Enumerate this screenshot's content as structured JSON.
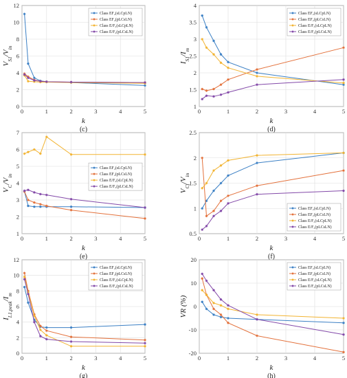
{
  "legend_prefix": "Class",
  "series_meta": [
    {
      "color": "#3a7fc4",
      "marker": "star"
    },
    {
      "color": "#e3703a",
      "marker": "star"
    },
    {
      "color": "#f2b330",
      "marker": "star"
    },
    {
      "color": "#8248a8",
      "marker": "star"
    }
  ],
  "chart_data": [
    {
      "type": "line",
      "caption": "(c)",
      "xlabel": "k",
      "ylabel_main": "V",
      "ylabel_sub1": "S1",
      "ylabel_mid": "/V",
      "ylabel_sub2": "in",
      "xlim": [
        0,
        5
      ],
      "ylim": [
        0,
        12
      ],
      "xticks": [
        0,
        1,
        2,
        3,
        4,
        5
      ],
      "yticks": [
        0,
        2,
        4,
        6,
        8,
        10,
        12
      ],
      "grid": true,
      "legend": "top-right",
      "series": [
        {
          "name": "EF₂(sLCpLN)",
          "x": [
            0.1,
            0.25,
            0.5,
            0.75,
            1,
            2,
            5
          ],
          "y": [
            11,
            5.1,
            3.4,
            3.05,
            2.95,
            2.85,
            2.5
          ]
        },
        {
          "name": "EF₂(pLCsLN)",
          "x": [
            0.1,
            0.25,
            0.5,
            0.75,
            1,
            2,
            5
          ],
          "y": [
            3.9,
            3.55,
            3.15,
            3.0,
            2.95,
            2.9,
            2.85
          ]
        },
        {
          "name": "E/F₂(sLCpLN)",
          "x": [
            0.1,
            0.25,
            0.5,
            0.75,
            1,
            2,
            5
          ],
          "y": [
            3.7,
            3.0,
            2.95,
            2.9,
            2.9,
            2.85,
            2.75
          ]
        },
        {
          "name": "E/F₂(pLCsLN)",
          "x": [
            0.1,
            0.25,
            0.5,
            0.75,
            1,
            2,
            5
          ],
          "y": [
            3.8,
            3.4,
            3.1,
            3.0,
            2.95,
            2.9,
            2.85
          ]
        }
      ]
    },
    {
      "type": "line",
      "caption": "(d)",
      "xlabel": "k",
      "ylabel_main": "I",
      "ylabel_sub1": "S1",
      "ylabel_mid": "/I",
      "ylabel_sub2": "m",
      "xlim": [
        0,
        5
      ],
      "ylim": [
        1,
        4
      ],
      "xticks": [
        0,
        1,
        2,
        3,
        4,
        5
      ],
      "yticks": [
        1,
        1.5,
        2,
        2.5,
        3,
        3.5,
        4
      ],
      "grid": true,
      "legend": "top-right",
      "series": [
        {
          "name": "EF₂(sLCpLN)",
          "x": [
            0.1,
            0.25,
            0.5,
            0.75,
            1,
            2,
            5
          ],
          "y": [
            3.7,
            3.35,
            2.95,
            2.55,
            2.32,
            2.0,
            1.65
          ]
        },
        {
          "name": "EF₂(pLCsLN)",
          "x": [
            0.1,
            0.25,
            0.5,
            0.75,
            1,
            2,
            5
          ],
          "y": [
            1.52,
            1.47,
            1.52,
            1.65,
            1.8,
            2.1,
            2.75
          ]
        },
        {
          "name": "E/F₂(sLCpLN)",
          "x": [
            0.1,
            0.25,
            0.5,
            0.75,
            1,
            2,
            5
          ],
          "y": [
            3.0,
            2.75,
            2.55,
            2.3,
            2.15,
            1.9,
            1.7
          ]
        },
        {
          "name": "E/F₂(pLCsLN)",
          "x": [
            0.1,
            0.25,
            0.5,
            0.75,
            1,
            2,
            5
          ],
          "y": [
            1.22,
            1.32,
            1.3,
            1.35,
            1.42,
            1.65,
            1.8
          ]
        }
      ]
    },
    {
      "type": "line",
      "caption": "(e)",
      "xlabel": "k",
      "ylabel_main": "V",
      "ylabel_sub1": "C",
      "ylabel_mid": "/V",
      "ylabel_sub2": "in",
      "xlim": [
        0,
        5
      ],
      "ylim": [
        1,
        7
      ],
      "xticks": [
        0,
        1,
        2,
        3,
        4,
        5
      ],
      "yticks": [
        1,
        2,
        3,
        4,
        5,
        6,
        7
      ],
      "grid": true,
      "legend": "center-right",
      "series": [
        {
          "name": "EF₂(sLCpLN)",
          "x": [
            0.1,
            0.25,
            0.5,
            0.75,
            1,
            2,
            5
          ],
          "y": [
            3.5,
            2.65,
            2.6,
            2.6,
            2.6,
            2.6,
            2.55
          ]
        },
        {
          "name": "EF₂(pLCsLN)",
          "x": [
            0.1,
            0.25,
            0.5,
            0.75,
            1,
            2,
            5
          ],
          "y": [
            3.5,
            3.0,
            2.85,
            2.75,
            2.65,
            2.4,
            1.9
          ]
        },
        {
          "name": "E/F₂(sLCpLN)",
          "x": [
            0.1,
            0.25,
            0.5,
            0.75,
            1,
            2,
            5
          ],
          "y": [
            5.75,
            5.85,
            6.0,
            5.75,
            6.75,
            5.7,
            5.7
          ]
        },
        {
          "name": "E/F₂(pLCsLN)",
          "x": [
            0.1,
            0.25,
            0.5,
            0.75,
            1,
            2,
            5
          ],
          "y": [
            3.55,
            3.6,
            3.45,
            3.35,
            3.3,
            3.05,
            2.55
          ]
        }
      ]
    },
    {
      "type": "line",
      "caption": "(f)",
      "xlabel": "k",
      "ylabel_main": "V",
      "ylabel_sub1": "Cf",
      "ylabel_mid": "/V",
      "ylabel_sub2": "in",
      "xlim": [
        0,
        5
      ],
      "ylim": [
        0.5,
        2.5
      ],
      "xticks": [
        0,
        1,
        2,
        3,
        4,
        5
      ],
      "yticks": [
        0.5,
        1,
        1.5,
        2,
        2.5
      ],
      "grid": true,
      "legend": "bottom-right",
      "series": [
        {
          "name": "EF₂(sLCpLN)",
          "x": [
            0.1,
            0.25,
            0.5,
            0.75,
            1,
            2,
            5
          ],
          "y": [
            1.0,
            1.15,
            1.35,
            1.5,
            1.65,
            1.9,
            2.1
          ]
        },
        {
          "name": "EF₂(pLCsLN)",
          "x": [
            0.1,
            0.25,
            0.5,
            0.75,
            1,
            2,
            5
          ],
          "y": [
            2.0,
            0.85,
            0.95,
            1.15,
            1.25,
            1.45,
            1.75
          ]
        },
        {
          "name": "E/F₂(sLCpLN)",
          "x": [
            0.1,
            0.25,
            0.5,
            0.75,
            1,
            2,
            5
          ],
          "y": [
            1.4,
            1.5,
            1.75,
            1.85,
            1.95,
            2.05,
            2.1
          ]
        },
        {
          "name": "E/F₂(pLCsLN)",
          "x": [
            0.1,
            0.25,
            0.5,
            0.75,
            1,
            2,
            5
          ],
          "y": [
            0.58,
            0.65,
            0.85,
            0.95,
            1.1,
            1.28,
            1.35
          ]
        }
      ]
    },
    {
      "type": "line",
      "caption": "(g)",
      "xlabel": "k",
      "ylabel_main": "I",
      "ylabel_sub1": "L1,peak",
      "ylabel_mid": "/I",
      "ylabel_sub2": "m",
      "xlim": [
        0,
        5
      ],
      "ylim": [
        0,
        12
      ],
      "xticks": [
        0,
        1,
        2,
        3,
        4,
        5
      ],
      "yticks": [
        0,
        2,
        4,
        6,
        8,
        10,
        12
      ],
      "grid": true,
      "legend": "top-right",
      "series": [
        {
          "name": "EF₂(sLCpLN)",
          "x": [
            0.1,
            0.25,
            0.5,
            0.75,
            1,
            2,
            5
          ],
          "y": [
            8.5,
            6.5,
            4.3,
            3.4,
            3.3,
            3.3,
            3.7
          ]
        },
        {
          "name": "EF₂(pLCsLN)",
          "x": [
            0.1,
            0.25,
            0.5,
            0.75,
            1,
            2,
            5
          ],
          "y": [
            10.3,
            8.0,
            5.0,
            3.5,
            2.9,
            2.1,
            1.7
          ]
        },
        {
          "name": "E/F₂(sLCpLN)",
          "x": [
            0.1,
            0.25,
            0.5,
            0.75,
            1,
            2,
            5
          ],
          "y": [
            9.8,
            7.8,
            4.8,
            3.0,
            2.3,
            0.9,
            0.9
          ]
        },
        {
          "name": "E/F₂(pLCsLN)",
          "x": [
            0.1,
            0.25,
            0.5,
            0.75,
            1,
            2,
            5
          ],
          "y": [
            9.5,
            7.6,
            4.0,
            2.2,
            1.8,
            1.5,
            1.3
          ]
        }
      ]
    },
    {
      "type": "line",
      "caption": "(h)",
      "xlabel": "k",
      "ylabel_main": "VR (%)",
      "ylabel_sub1": "",
      "ylabel_mid": "",
      "ylabel_sub2": "",
      "xlim": [
        0,
        5
      ],
      "ylim": [
        -20,
        20
      ],
      "xticks": [
        0,
        1,
        2,
        3,
        4,
        5
      ],
      "yticks": [
        -20,
        -10,
        0,
        10,
        20
      ],
      "grid": true,
      "legend": "top-right",
      "series": [
        {
          "name": "EF₂(sLCpLN)",
          "x": [
            0.1,
            0.25,
            0.5,
            0.75,
            1,
            2,
            5
          ],
          "y": [
            2,
            -1,
            -3.5,
            -4.5,
            -5,
            -5.5,
            -7
          ]
        },
        {
          "name": "EF₂(pLCsLN)",
          "x": [
            0.1,
            0.25,
            0.5,
            0.75,
            1,
            2,
            5
          ],
          "y": [
            12,
            5,
            -1,
            -3.5,
            -7,
            -12.5,
            -19.5
          ]
        },
        {
          "name": "E/F₂(sLCpLN)",
          "x": [
            0.1,
            0.25,
            0.5,
            0.75,
            1,
            2,
            5
          ],
          "y": [
            7,
            5,
            1.5,
            0.5,
            -1,
            -3.5,
            -5
          ]
        },
        {
          "name": "E/F₂(pLCsLN)",
          "x": [
            0.1,
            0.25,
            0.5,
            0.75,
            1,
            2,
            5
          ],
          "y": [
            14,
            11,
            7,
            3,
            0.5,
            -5.5,
            -12
          ]
        }
      ]
    }
  ]
}
